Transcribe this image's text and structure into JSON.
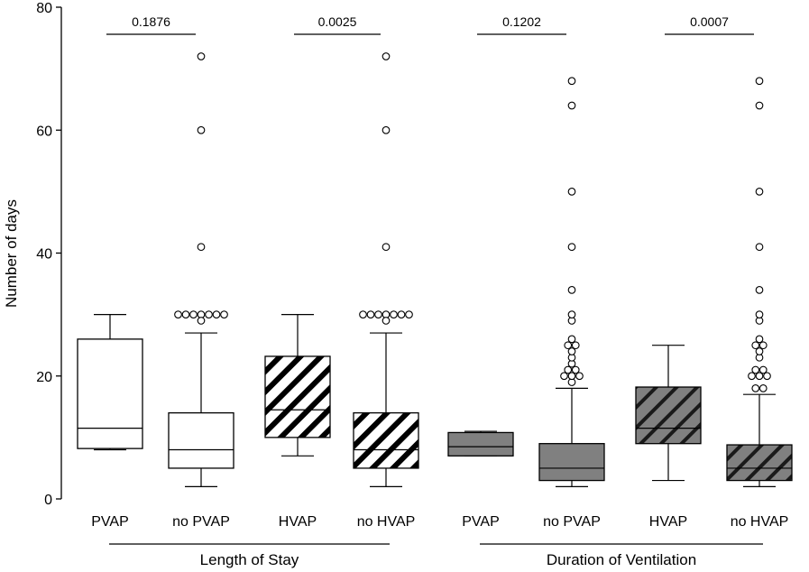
{
  "chart_data": {
    "type": "box",
    "ylabel": "Number of days",
    "xlabel": "",
    "ylim": [
      0,
      80
    ],
    "yticks": [
      0,
      20,
      40,
      60,
      80
    ],
    "groups": [
      {
        "label": "Length of Stay",
        "members": [
          0,
          1,
          2,
          3
        ]
      },
      {
        "label": "Duration  of Ventilation",
        "members": [
          4,
          5,
          6,
          7
        ]
      }
    ],
    "comparisons": [
      {
        "pair": [
          0,
          1
        ],
        "label": "0.1876"
      },
      {
        "pair": [
          2,
          3
        ],
        "label": "0.0025"
      },
      {
        "pair": [
          4,
          5
        ],
        "label": "0.1202"
      },
      {
        "pair": [
          6,
          7
        ],
        "label": "0.0007"
      }
    ],
    "boxes": [
      {
        "category": "PVAP",
        "fill": "white",
        "hatch": false,
        "whisker_low": 8,
        "q1": 8.2,
        "median": 11.5,
        "q3": 26,
        "whisker_high": 30,
        "outliers": []
      },
      {
        "category": "no PVAP",
        "fill": "white",
        "hatch": false,
        "whisker_low": 2,
        "q1": 5,
        "median": 8,
        "q3": 14,
        "whisker_high": 27,
        "outliers": [
          30,
          30,
          30,
          30,
          30,
          30,
          30,
          29,
          41,
          60,
          72
        ]
      },
      {
        "category": "HVAP",
        "fill": "white",
        "hatch": true,
        "whisker_low": 7,
        "q1": 10,
        "median": 14.5,
        "q3": 23.2,
        "whisker_high": 30,
        "outliers": []
      },
      {
        "category": "no HVAP",
        "fill": "white",
        "hatch": true,
        "whisker_low": 2,
        "q1": 5,
        "median": 8,
        "q3": 14,
        "whisker_high": 27,
        "outliers": [
          30,
          30,
          30,
          30,
          30,
          30,
          30,
          29,
          41,
          60,
          72
        ]
      },
      {
        "category": "PVAP",
        "fill": "#808080",
        "hatch": false,
        "whisker_low": 7,
        "q1": 7,
        "median": 8.5,
        "q3": 10.8,
        "whisker_high": 11,
        "outliers": []
      },
      {
        "category": "no PVAP",
        "fill": "#808080",
        "hatch": false,
        "whisker_low": 2,
        "q1": 3,
        "median": 5,
        "q3": 9,
        "whisker_high": 18,
        "outliers": [
          19,
          20,
          20,
          20,
          21,
          21,
          22,
          23,
          24,
          25,
          25,
          26,
          29,
          30,
          34,
          41,
          50,
          64,
          68
        ]
      },
      {
        "category": "HVAP",
        "fill": "#808080",
        "hatch": true,
        "whisker_low": 3,
        "q1": 9,
        "median": 11.5,
        "q3": 18.2,
        "whisker_high": 25,
        "outliers": []
      },
      {
        "category": "no HVAP",
        "fill": "#808080",
        "hatch": true,
        "whisker_low": 2,
        "q1": 3,
        "median": 5,
        "q3": 8.8,
        "whisker_high": 17,
        "outliers": [
          18,
          18,
          20,
          20,
          20,
          21,
          21,
          23,
          24,
          25,
          25,
          26,
          29,
          30,
          34,
          41,
          50,
          64,
          68
        ]
      }
    ],
    "grid": false,
    "legend": "none"
  }
}
